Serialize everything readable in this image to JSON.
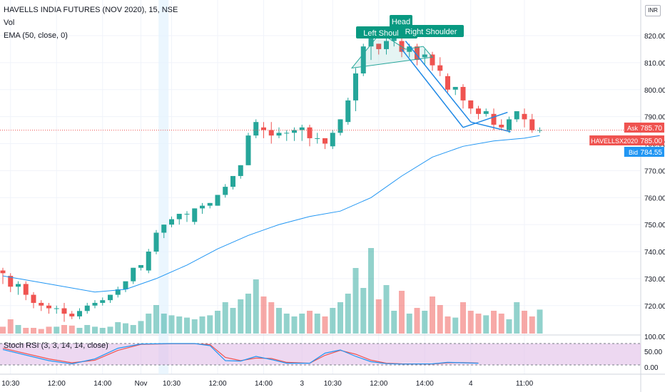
{
  "legend": {
    "symbol": "HAVELLS INDIA FUTURES (NOV 2020), 15, NSE",
    "vol": "Vol",
    "ema": "EMA (50, close, 0)",
    "rsi": "Stoch RSI (3, 3, 14, 14, close)"
  },
  "currency_badge": "INR",
  "colors": {
    "up": "#26a69a",
    "down": "#ef5350",
    "ema": "#2196f3",
    "trend": "#1e88e5",
    "label_bg": "#089981",
    "rsi_band": "#e1bee7",
    "rsi_k": "#2196f3",
    "rsi_d": "#ef5350"
  },
  "annotations": [
    "Left Shoulder",
    "Head",
    "Right Shoulder"
  ],
  "price_tags": [
    {
      "label": "Ask",
      "value": "785.70",
      "color": "#ef5350",
      "y": 785.7
    },
    {
      "label": "HAVELLSX2020",
      "value": "785.00",
      "color": "#ef5350",
      "y": 785.0
    },
    {
      "label": "Bid",
      "value": "784.55",
      "color": "#2196f3",
      "y": 784.55
    }
  ],
  "chart_data": {
    "type": "candlestick",
    "y_axis": {
      "min": 715,
      "max": 828,
      "ticks": [
        720,
        730,
        740,
        750,
        760,
        770,
        780,
        790,
        800,
        810,
        820
      ]
    },
    "rsi_axis": {
      "ticks": [
        "100.00",
        "50.00",
        "0.00"
      ]
    },
    "x_ticks": [
      {
        "label": "10:30",
        "i": 1
      },
      {
        "label": "12:00",
        "i": 7
      },
      {
        "label": "14:00",
        "i": 13
      },
      {
        "label": "Nov",
        "i": 18
      },
      {
        "label": "10:30",
        "i": 22
      },
      {
        "label": "12:00",
        "i": 28
      },
      {
        "label": "14:00",
        "i": 34
      },
      {
        "label": "3",
        "i": 39
      },
      {
        "label": "10:30",
        "i": 43
      },
      {
        "label": "12:00",
        "i": 49
      },
      {
        "label": "14:00",
        "i": 55
      },
      {
        "label": "4",
        "i": 61
      },
      {
        "label": "11:00",
        "i": 68
      }
    ],
    "candles": [
      [
        733,
        732,
        728,
        734
      ],
      [
        731,
        727,
        725,
        732
      ],
      [
        727,
        728,
        724,
        729
      ],
      [
        728,
        724,
        722,
        729
      ],
      [
        724,
        721,
        719,
        725
      ],
      [
        721,
        720,
        718,
        722
      ],
      [
        720,
        719,
        717,
        721
      ],
      [
        719,
        719,
        717,
        720
      ],
      [
        719,
        717,
        714,
        721
      ],
      [
        717,
        716,
        715,
        718
      ],
      [
        716,
        718,
        715,
        719
      ],
      [
        718,
        720,
        717,
        721
      ],
      [
        720,
        721,
        719,
        722
      ],
      [
        721,
        722,
        720,
        723
      ],
      [
        722,
        724,
        721,
        724
      ],
      [
        724,
        726,
        723,
        727
      ],
      [
        726,
        729,
        725,
        728
      ],
      [
        729,
        734,
        728,
        734
      ],
      [
        734,
        735,
        733,
        735
      ],
      [
        733,
        740,
        732,
        741
      ],
      [
        740,
        747,
        739,
        748
      ],
      [
        747,
        750,
        745,
        750
      ],
      [
        750,
        752,
        749,
        753
      ],
      [
        752,
        754,
        750,
        754
      ],
      [
        754,
        754,
        751,
        755
      ],
      [
        751,
        756,
        750,
        756
      ],
      [
        756,
        757,
        754,
        758
      ],
      [
        757,
        758,
        756,
        758
      ],
      [
        757,
        761,
        757,
        761
      ],
      [
        761,
        764,
        760,
        765
      ],
      [
        764,
        768,
        763,
        768
      ],
      [
        768,
        772,
        767,
        772
      ],
      [
        772,
        783,
        772,
        784
      ],
      [
        783,
        788,
        782,
        789
      ],
      [
        786,
        785,
        782,
        788
      ],
      [
        785,
        783,
        780,
        788
      ],
      [
        783,
        784,
        782,
        786
      ],
      [
        784,
        784,
        781,
        785
      ],
      [
        784,
        785,
        781,
        786
      ],
      [
        785,
        786,
        781,
        787
      ],
      [
        786,
        782,
        779,
        787
      ],
      [
        782,
        782,
        780,
        784
      ],
      [
        782,
        780,
        778,
        782
      ],
      [
        779,
        784,
        778,
        785
      ],
      [
        784,
        789,
        783,
        789
      ],
      [
        788,
        796,
        787,
        797
      ],
      [
        796,
        806,
        792,
        808
      ],
      [
        806,
        816,
        805,
        817
      ],
      [
        816,
        819,
        811,
        820
      ],
      [
        817,
        815,
        813,
        817
      ],
      [
        815,
        818,
        813,
        819
      ],
      [
        818,
        820,
        816,
        821
      ],
      [
        818,
        814,
        812,
        819
      ],
      [
        814,
        816,
        812,
        817
      ],
      [
        816,
        811,
        809,
        817
      ],
      [
        812,
        813,
        809,
        815
      ],
      [
        813,
        809,
        807,
        814
      ],
      [
        809,
        807,
        805,
        812
      ],
      [
        805,
        800,
        799,
        806
      ],
      [
        800,
        801,
        798,
        801
      ],
      [
        801,
        796,
        793,
        802
      ],
      [
        796,
        793,
        791,
        796
      ],
      [
        793,
        791,
        789,
        794
      ],
      [
        791,
        792,
        790,
        793
      ],
      [
        791,
        787,
        785,
        793
      ],
      [
        787,
        786,
        785,
        789
      ],
      [
        785,
        789,
        784,
        790
      ],
      [
        789,
        792,
        788,
        792
      ],
      [
        791,
        789,
        786,
        793
      ],
      [
        789,
        785,
        784,
        791
      ],
      [
        785,
        785,
        784,
        786
      ]
    ],
    "volume": [
      12,
      25,
      15,
      10,
      10,
      8,
      12,
      12,
      15,
      14,
      10,
      15,
      12,
      10,
      12,
      20,
      18,
      15,
      22,
      35,
      50,
      35,
      32,
      30,
      28,
      25,
      30,
      32,
      40,
      55,
      45,
      60,
      70,
      95,
      65,
      55,
      45,
      35,
      30,
      35,
      40,
      35,
      30,
      45,
      55,
      70,
      115,
      80,
      150,
      60,
      85,
      40,
      75,
      35,
      45,
      40,
      65,
      50,
      30,
      28,
      55,
      40,
      35,
      32,
      40,
      35,
      25,
      55,
      40,
      30,
      42
    ],
    "ema": [
      [
        0,
        731
      ],
      [
        6,
        728
      ],
      [
        12,
        725
      ],
      [
        16,
        726
      ],
      [
        20,
        730
      ],
      [
        24,
        735
      ],
      [
        28,
        741
      ],
      [
        32,
        746
      ],
      [
        36,
        750
      ],
      [
        40,
        753
      ],
      [
        44,
        755
      ],
      [
        48,
        760
      ],
      [
        52,
        768
      ],
      [
        56,
        775
      ],
      [
        60,
        779
      ],
      [
        64,
        781
      ],
      [
        68,
        782
      ],
      [
        70,
        783
      ]
    ],
    "rsi_k": [
      [
        0,
        72
      ],
      [
        6,
        20
      ],
      [
        9,
        5
      ],
      [
        12,
        28
      ],
      [
        15,
        78
      ],
      [
        18,
        98
      ],
      [
        22,
        100
      ],
      [
        25,
        100
      ],
      [
        27,
        90
      ],
      [
        29,
        20
      ],
      [
        31,
        18
      ],
      [
        33,
        40
      ],
      [
        35,
        25
      ],
      [
        37,
        8
      ],
      [
        40,
        8
      ],
      [
        42,
        55
      ],
      [
        44,
        70
      ],
      [
        46,
        40
      ],
      [
        48,
        15
      ],
      [
        50,
        6
      ],
      [
        52,
        4
      ],
      [
        56,
        5
      ],
      [
        58,
        12
      ],
      [
        60,
        10
      ],
      [
        62,
        8
      ]
    ],
    "rsi_d": [
      [
        0,
        78
      ],
      [
        6,
        28
      ],
      [
        9,
        10
      ],
      [
        12,
        22
      ],
      [
        15,
        68
      ],
      [
        18,
        96
      ],
      [
        22,
        99
      ],
      [
        25,
        99
      ],
      [
        27,
        95
      ],
      [
        29,
        35
      ],
      [
        31,
        20
      ],
      [
        33,
        32
      ],
      [
        35,
        30
      ],
      [
        37,
        12
      ],
      [
        40,
        8
      ],
      [
        42,
        45
      ],
      [
        44,
        68
      ],
      [
        46,
        50
      ],
      [
        48,
        22
      ],
      [
        50,
        8
      ],
      [
        52,
        5
      ],
      [
        56,
        4
      ],
      [
        58,
        10
      ],
      [
        60,
        11
      ],
      [
        62,
        9
      ]
    ]
  }
}
